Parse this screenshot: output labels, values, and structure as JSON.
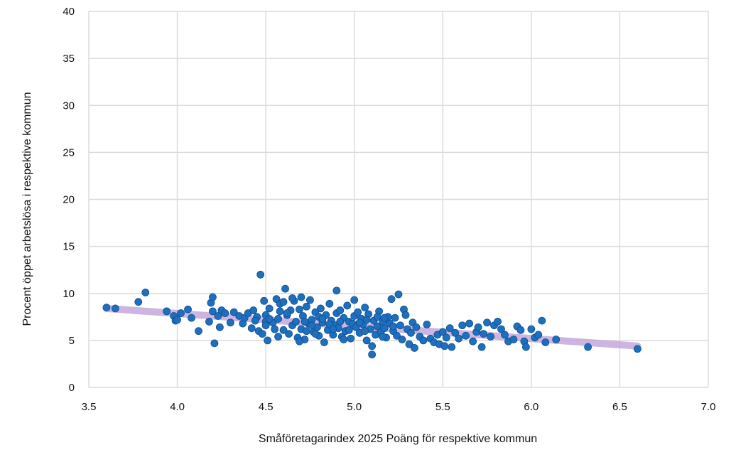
{
  "chart_data": {
    "type": "scatter",
    "title": "",
    "xlabel": "Småföretagarindex 2025 Poäng för respektive kommun",
    "ylabel": "Procent öppet arbetslösa i respektive kommun",
    "xlim": [
      3.5,
      7.0
    ],
    "ylim": [
      0,
      40
    ],
    "x_ticks": [
      "3.5",
      "4.0",
      "4.5",
      "5.0",
      "5.5",
      "6.0",
      "6.5",
      "7.0"
    ],
    "y_ticks": [
      "0",
      "5",
      "10",
      "15",
      "20",
      "25",
      "30",
      "35",
      "40"
    ],
    "grid": true,
    "legend": "none",
    "colors": {
      "points": "#1f6fbf",
      "point_edge": "#0d4f91",
      "trend": "#c6a8dc",
      "grid": "#dcdcdc"
    },
    "trendline": {
      "x": [
        3.6,
        6.6
      ],
      "y": [
        8.4,
        4.4
      ]
    },
    "points": [
      [
        3.6,
        8.5
      ],
      [
        3.65,
        8.4
      ],
      [
        3.78,
        9.1
      ],
      [
        3.82,
        10.1
      ],
      [
        3.94,
        8.1
      ],
      [
        3.98,
        7.6
      ],
      [
        3.99,
        7.1
      ],
      [
        4.0,
        7.2
      ],
      [
        4.02,
        7.9
      ],
      [
        4.06,
        8.3
      ],
      [
        4.08,
        7.4
      ],
      [
        4.12,
        6.0
      ],
      [
        4.18,
        7.0
      ],
      [
        4.19,
        9.0
      ],
      [
        4.2,
        9.6
      ],
      [
        4.2,
        8.1
      ],
      [
        4.21,
        4.7
      ],
      [
        4.23,
        7.6
      ],
      [
        4.24,
        6.4
      ],
      [
        4.25,
        8.2
      ],
      [
        4.27,
        7.9
      ],
      [
        4.3,
        6.9
      ],
      [
        4.32,
        8.0
      ],
      [
        4.35,
        7.6
      ],
      [
        4.37,
        6.8
      ],
      [
        4.38,
        7.4
      ],
      [
        4.4,
        7.9
      ],
      [
        4.42,
        6.3
      ],
      [
        4.43,
        8.2
      ],
      [
        4.45,
        7.5
      ],
      [
        4.46,
        6.0
      ],
      [
        4.48,
        5.7
      ],
      [
        4.5,
        7.0
      ],
      [
        4.5,
        6.6
      ],
      [
        4.47,
        12.0
      ],
      [
        4.49,
        9.2
      ],
      [
        4.5,
        7.7
      ],
      [
        4.51,
        5.0
      ],
      [
        4.52,
        8.4
      ],
      [
        4.54,
        6.9
      ],
      [
        4.55,
        6.2
      ],
      [
        4.56,
        9.4
      ],
      [
        4.57,
        7.3
      ],
      [
        4.58,
        8.9
      ],
      [
        4.6,
        6.1
      ],
      [
        4.6,
        9.1
      ],
      [
        4.61,
        10.5
      ],
      [
        4.62,
        7.7
      ],
      [
        4.63,
        5.7
      ],
      [
        4.64,
        8.2
      ],
      [
        4.65,
        6.6
      ],
      [
        4.66,
        9.2
      ],
      [
        4.67,
        7.0
      ],
      [
        4.68,
        5.3
      ],
      [
        4.69,
        8.3
      ],
      [
        4.7,
        9.6
      ],
      [
        4.7,
        6.2
      ],
      [
        4.71,
        7.6
      ],
      [
        4.72,
        5.1
      ],
      [
        4.73,
        8.6
      ],
      [
        4.74,
        6.8
      ],
      [
        4.75,
        9.3
      ],
      [
        4.76,
        7.2
      ],
      [
        4.77,
        5.9
      ],
      [
        4.78,
        8.0
      ],
      [
        4.79,
        6.4
      ],
      [
        4.8,
        5.5
      ],
      [
        4.8,
        7.5
      ],
      [
        4.81,
        8.4
      ],
      [
        4.82,
        6.9
      ],
      [
        4.83,
        4.8
      ],
      [
        4.84,
        7.7
      ],
      [
        4.85,
        6.1
      ],
      [
        4.86,
        8.9
      ],
      [
        4.87,
        7.1
      ],
      [
        4.88,
        5.6
      ],
      [
        4.89,
        6.6
      ],
      [
        4.9,
        7.9
      ],
      [
        4.9,
        10.3
      ],
      [
        4.91,
        6.3
      ],
      [
        4.92,
        8.2
      ],
      [
        4.93,
        5.4
      ],
      [
        4.94,
        7.4
      ],
      [
        4.95,
        6.0
      ],
      [
        4.96,
        8.7
      ],
      [
        4.97,
        7.0
      ],
      [
        4.98,
        5.2
      ],
      [
        4.99,
        6.8
      ],
      [
        5.0,
        7.6
      ],
      [
        5.0,
        9.3
      ],
      [
        5.01,
        6.4
      ],
      [
        5.02,
        8.0
      ],
      [
        5.03,
        5.8
      ],
      [
        5.04,
        7.3
      ],
      [
        5.05,
        6.7
      ],
      [
        5.06,
        8.5
      ],
      [
        5.07,
        5.0
      ],
      [
        5.08,
        7.8
      ],
      [
        5.09,
        6.2
      ],
      [
        5.1,
        4.4
      ],
      [
        5.1,
        3.5
      ],
      [
        5.11,
        7.1
      ],
      [
        5.12,
        5.6
      ],
      [
        5.13,
        6.5
      ],
      [
        5.14,
        8.1
      ],
      [
        5.15,
        5.9
      ],
      [
        5.16,
        7.0
      ],
      [
        5.17,
        6.3
      ],
      [
        5.18,
        5.3
      ],
      [
        5.19,
        7.5
      ],
      [
        5.2,
        6.8
      ],
      [
        5.21,
        9.4
      ],
      [
        5.22,
        6.0
      ],
      [
        5.23,
        7.4
      ],
      [
        5.24,
        5.5
      ],
      [
        5.25,
        9.9
      ],
      [
        5.26,
        6.6
      ],
      [
        5.27,
        5.1
      ],
      [
        5.28,
        8.3
      ],
      [
        5.29,
        7.7
      ],
      [
        5.3,
        6.2
      ],
      [
        5.31,
        4.6
      ],
      [
        5.32,
        5.8
      ],
      [
        5.33,
        6.9
      ],
      [
        5.34,
        4.2
      ],
      [
        5.35,
        6.4
      ],
      [
        5.37,
        5.4
      ],
      [
        5.39,
        5.0
      ],
      [
        5.41,
        6.7
      ],
      [
        5.43,
        5.2
      ],
      [
        5.45,
        4.8
      ],
      [
        5.47,
        5.6
      ],
      [
        5.48,
        4.6
      ],
      [
        5.5,
        5.9
      ],
      [
        5.51,
        4.4
      ],
      [
        5.52,
        5.3
      ],
      [
        5.54,
        6.3
      ],
      [
        5.55,
        4.3
      ],
      [
        5.57,
        5.8
      ],
      [
        5.59,
        5.2
      ],
      [
        5.61,
        6.6
      ],
      [
        5.63,
        5.5
      ],
      [
        5.65,
        6.8
      ],
      [
        5.67,
        4.9
      ],
      [
        5.69,
        5.9
      ],
      [
        5.7,
        6.4
      ],
      [
        5.72,
        4.3
      ],
      [
        5.73,
        5.7
      ],
      [
        5.75,
        6.9
      ],
      [
        5.77,
        5.4
      ],
      [
        5.79,
        6.6
      ],
      [
        5.81,
        7.0
      ],
      [
        5.83,
        6.2
      ],
      [
        5.85,
        5.6
      ],
      [
        5.87,
        4.9
      ],
      [
        5.9,
        5.1
      ],
      [
        5.92,
        6.5
      ],
      [
        5.94,
        6.1
      ],
      [
        5.96,
        4.9
      ],
      [
        5.97,
        4.3
      ],
      [
        6.0,
        6.2
      ],
      [
        6.02,
        5.3
      ],
      [
        6.04,
        5.6
      ],
      [
        6.06,
        7.1
      ],
      [
        6.08,
        4.8
      ],
      [
        6.14,
        5.1
      ],
      [
        6.32,
        4.3
      ],
      [
        6.6,
        4.1
      ],
      [
        4.58,
        8.1
      ],
      [
        4.62,
        7.9
      ],
      [
        4.65,
        9.5
      ],
      [
        4.72,
        7.0
      ],
      [
        4.76,
        6.6
      ],
      [
        4.82,
        7.3
      ],
      [
        4.86,
        6.7
      ],
      [
        4.92,
        7.0
      ],
      [
        4.97,
        6.1
      ],
      [
        5.03,
        6.9
      ],
      [
        5.07,
        7.2
      ],
      [
        5.13,
        7.5
      ],
      [
        5.17,
        7.4
      ],
      [
        5.22,
        6.5
      ],
      [
        4.44,
        7.1
      ],
      [
        4.52,
        7.3
      ],
      [
        4.57,
        5.4
      ],
      [
        4.69,
        4.9
      ],
      [
        4.73,
        6.0
      ],
      [
        4.78,
        5.7
      ],
      [
        4.88,
        6.2
      ],
      [
        4.94,
        5.1
      ],
      [
        5.06,
        6.0
      ],
      [
        5.16,
        5.4
      ]
    ]
  }
}
